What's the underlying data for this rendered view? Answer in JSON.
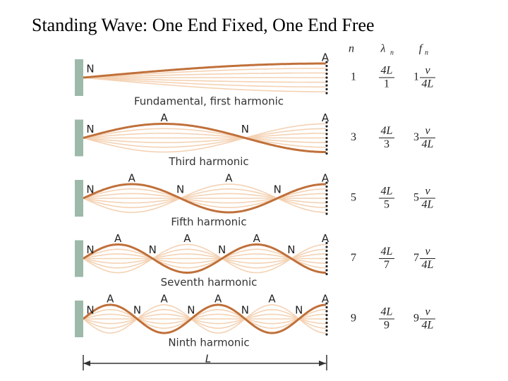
{
  "title": "Standing Wave: One End Fixed, One End Free",
  "columns": {
    "n": "n",
    "wavelength": "λ",
    "wavelength_sub": "n",
    "frequency": "f",
    "frequency_sub": "n"
  },
  "harmonics": [
    {
      "caption": "Fundamental, first harmonic",
      "n": 1,
      "labels": [
        "N",
        "A"
      ],
      "lambda_num": "4L",
      "lambda_den": 1,
      "f_coef": 1,
      "f_num": "v",
      "f_den": "4L"
    },
    {
      "caption": "Third harmonic",
      "n": 3,
      "labels": [
        "N",
        "A",
        "N",
        "A"
      ],
      "lambda_num": "4L",
      "lambda_den": 3,
      "f_coef": 3,
      "f_num": "v",
      "f_den": "4L"
    },
    {
      "caption": "Fifth harmonic",
      "n": 5,
      "labels": [
        "N",
        "A",
        "N",
        "A",
        "N",
        "A"
      ],
      "lambda_num": "4L",
      "lambda_den": 5,
      "f_coef": 5,
      "f_num": "v",
      "f_den": "4L"
    },
    {
      "caption": "Seventh harmonic",
      "n": 7,
      "labels": [
        "N",
        "A",
        "N",
        "A",
        "N",
        "A",
        "N",
        "A"
      ],
      "lambda_num": "4L",
      "lambda_den": 7,
      "f_coef": 7,
      "f_num": "v",
      "f_den": "4L"
    },
    {
      "caption": "Ninth harmonic",
      "n": 9,
      "labels": [
        "N",
        "A",
        "N",
        "A",
        "N",
        "A",
        "N",
        "A",
        "N",
        "A"
      ],
      "lambda_num": "4L",
      "lambda_den": 9,
      "f_coef": 9,
      "f_num": "v",
      "f_den": "4L"
    }
  ],
  "length_label": "L"
}
